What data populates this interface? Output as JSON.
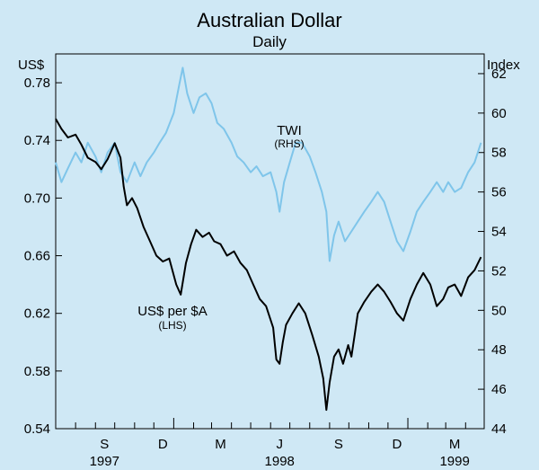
{
  "chart_data": {
    "type": "line",
    "title": "Australian Dollar",
    "subtitle": "Daily",
    "left_axis": {
      "unit": "US$",
      "ylim": [
        0.54,
        0.8
      ],
      "ticks": [
        "0.78",
        "0.74",
        "0.70",
        "0.66",
        "0.62",
        "0.58",
        "0.54"
      ]
    },
    "right_axis": {
      "unit": "Index",
      "ylim": [
        44,
        63
      ],
      "ticks": [
        "62",
        "60",
        "58",
        "56",
        "54",
        "52",
        "50",
        "48",
        "46",
        "44"
      ]
    },
    "x_axis": {
      "start": "1997-07-01",
      "end": "1999-04-30",
      "month_ticks": [
        {
          "label": "S",
          "date": "1997-09-15"
        },
        {
          "label": "D",
          "date": "1997-12-15"
        },
        {
          "label": "M",
          "date": "1998-03-15"
        },
        {
          "label": "J",
          "date": "1998-06-15"
        },
        {
          "label": "S",
          "date": "1998-09-15"
        },
        {
          "label": "D",
          "date": "1998-12-15"
        },
        {
          "label": "M",
          "date": "1999-03-15"
        }
      ],
      "year_labels": [
        {
          "label": "1997",
          "date": "1997-09-15"
        },
        {
          "label": "1998",
          "date": "1998-06-15"
        },
        {
          "label": "1999",
          "date": "1999-03-15"
        }
      ]
    },
    "series": [
      {
        "name": "US$ per $A",
        "sub": "(LHS)",
        "axis": "left",
        "color": "#000000",
        "points": [
          [
            "1997-07-01",
            0.755
          ],
          [
            "1997-07-10",
            0.748
          ],
          [
            "1997-07-20",
            0.742
          ],
          [
            "1997-08-01",
            0.744
          ],
          [
            "1997-08-10",
            0.737
          ],
          [
            "1997-08-20",
            0.728
          ],
          [
            "1997-09-01",
            0.725
          ],
          [
            "1997-09-10",
            0.72
          ],
          [
            "1997-09-20",
            0.727
          ],
          [
            "1997-10-01",
            0.738
          ],
          [
            "1997-10-10",
            0.728
          ],
          [
            "1997-10-15",
            0.708
          ],
          [
            "1997-10-20",
            0.695
          ],
          [
            "1997-10-28",
            0.7
          ],
          [
            "1997-11-05",
            0.693
          ],
          [
            "1997-11-15",
            0.68
          ],
          [
            "1997-11-25",
            0.67
          ],
          [
            "1997-12-05",
            0.66
          ],
          [
            "1997-12-15",
            0.656
          ],
          [
            "1997-12-25",
            0.658
          ],
          [
            "1998-01-05",
            0.64
          ],
          [
            "1998-01-12",
            0.633
          ],
          [
            "1998-01-20",
            0.655
          ],
          [
            "1998-01-28",
            0.668
          ],
          [
            "1998-02-05",
            0.678
          ],
          [
            "1998-02-15",
            0.673
          ],
          [
            "1998-02-25",
            0.676
          ],
          [
            "1998-03-05",
            0.67
          ],
          [
            "1998-03-15",
            0.668
          ],
          [
            "1998-03-25",
            0.66
          ],
          [
            "1998-04-05",
            0.663
          ],
          [
            "1998-04-15",
            0.655
          ],
          [
            "1998-04-25",
            0.65
          ],
          [
            "1998-05-05",
            0.64
          ],
          [
            "1998-05-15",
            0.63
          ],
          [
            "1998-05-25",
            0.625
          ],
          [
            "1998-06-05",
            0.61
          ],
          [
            "1998-06-10",
            0.588
          ],
          [
            "1998-06-15",
            0.585
          ],
          [
            "1998-06-20",
            0.6
          ],
          [
            "1998-06-25",
            0.612
          ],
          [
            "1998-07-05",
            0.62
          ],
          [
            "1998-07-15",
            0.627
          ],
          [
            "1998-07-25",
            0.62
          ],
          [
            "1998-08-05",
            0.605
          ],
          [
            "1998-08-15",
            0.59
          ],
          [
            "1998-08-22",
            0.575
          ],
          [
            "1998-08-27",
            0.553
          ],
          [
            "1998-09-01",
            0.572
          ],
          [
            "1998-09-08",
            0.59
          ],
          [
            "1998-09-15",
            0.595
          ],
          [
            "1998-09-22",
            0.585
          ],
          [
            "1998-09-30",
            0.598
          ],
          [
            "1998-10-05",
            0.59
          ],
          [
            "1998-10-10",
            0.605
          ],
          [
            "1998-10-15",
            0.62
          ],
          [
            "1998-10-25",
            0.628
          ],
          [
            "1998-11-05",
            0.635
          ],
          [
            "1998-11-15",
            0.64
          ],
          [
            "1998-11-25",
            0.635
          ],
          [
            "1998-12-05",
            0.628
          ],
          [
            "1998-12-15",
            0.62
          ],
          [
            "1998-12-25",
            0.615
          ],
          [
            "1999-01-05",
            0.63
          ],
          [
            "1999-01-15",
            0.64
          ],
          [
            "1999-01-25",
            0.648
          ],
          [
            "1999-02-05",
            0.64
          ],
          [
            "1999-02-15",
            0.625
          ],
          [
            "1999-02-25",
            0.63
          ],
          [
            "1999-03-05",
            0.638
          ],
          [
            "1999-03-15",
            0.64
          ],
          [
            "1999-03-25",
            0.632
          ],
          [
            "1999-04-05",
            0.645
          ],
          [
            "1999-04-15",
            0.65
          ],
          [
            "1999-04-25",
            0.659
          ]
        ]
      },
      {
        "name": "TWI",
        "sub": "(RHS)",
        "axis": "right",
        "color": "#7fc5ea",
        "points": [
          [
            "1997-07-01",
            57.5
          ],
          [
            "1997-07-10",
            56.5
          ],
          [
            "1997-07-20",
            57.2
          ],
          [
            "1997-08-01",
            58.0
          ],
          [
            "1997-08-10",
            57.5
          ],
          [
            "1997-08-20",
            58.5
          ],
          [
            "1997-09-01",
            57.8
          ],
          [
            "1997-09-10",
            57.0
          ],
          [
            "1997-09-20",
            58.0
          ],
          [
            "1997-10-01",
            58.5
          ],
          [
            "1997-10-10",
            57.0
          ],
          [
            "1997-10-20",
            56.5
          ],
          [
            "1997-11-01",
            57.5
          ],
          [
            "1997-11-10",
            56.8
          ],
          [
            "1997-11-20",
            57.5
          ],
          [
            "1997-12-01",
            58.0
          ],
          [
            "1997-12-10",
            58.5
          ],
          [
            "1997-12-20",
            59.0
          ],
          [
            "1998-01-01",
            60.0
          ],
          [
            "1998-01-10",
            61.5
          ],
          [
            "1998-01-15",
            62.3
          ],
          [
            "1998-01-22",
            61.0
          ],
          [
            "1998-02-01",
            60.0
          ],
          [
            "1998-02-10",
            60.8
          ],
          [
            "1998-02-20",
            61.0
          ],
          [
            "1998-03-01",
            60.5
          ],
          [
            "1998-03-10",
            59.5
          ],
          [
            "1998-03-20",
            59.2
          ],
          [
            "1998-04-01",
            58.5
          ],
          [
            "1998-04-10",
            57.8
          ],
          [
            "1998-04-20",
            57.5
          ],
          [
            "1998-05-01",
            57.0
          ],
          [
            "1998-05-10",
            57.3
          ],
          [
            "1998-05-20",
            56.8
          ],
          [
            "1998-06-01",
            57.0
          ],
          [
            "1998-06-10",
            56.0
          ],
          [
            "1998-06-15",
            55.0
          ],
          [
            "1998-06-22",
            56.5
          ],
          [
            "1998-07-01",
            57.5
          ],
          [
            "1998-07-10",
            58.5
          ],
          [
            "1998-07-20",
            58.5
          ],
          [
            "1998-08-01",
            57.8
          ],
          [
            "1998-08-10",
            57.0
          ],
          [
            "1998-08-20",
            56.0
          ],
          [
            "1998-08-27",
            55.0
          ],
          [
            "1998-09-01",
            52.5
          ],
          [
            "1998-09-08",
            53.8
          ],
          [
            "1998-09-15",
            54.5
          ],
          [
            "1998-09-25",
            53.5
          ],
          [
            "1998-10-05",
            54.0
          ],
          [
            "1998-10-15",
            54.5
          ],
          [
            "1998-10-25",
            55.0
          ],
          [
            "1998-11-05",
            55.5
          ],
          [
            "1998-11-15",
            56.0
          ],
          [
            "1998-11-25",
            55.5
          ],
          [
            "1998-12-05",
            54.5
          ],
          [
            "1998-12-15",
            53.5
          ],
          [
            "1998-12-25",
            53.0
          ],
          [
            "1999-01-05",
            54.0
          ],
          [
            "1999-01-15",
            55.0
          ],
          [
            "1999-01-25",
            55.5
          ],
          [
            "1999-02-05",
            56.0
          ],
          [
            "1999-02-15",
            56.5
          ],
          [
            "1999-02-25",
            56.0
          ],
          [
            "1999-03-05",
            56.5
          ],
          [
            "1999-03-15",
            56.0
          ],
          [
            "1999-03-25",
            56.2
          ],
          [
            "1999-04-05",
            57.0
          ],
          [
            "1999-04-15",
            57.5
          ],
          [
            "1999-04-25",
            58.5
          ]
        ]
      }
    ],
    "grid": false
  }
}
